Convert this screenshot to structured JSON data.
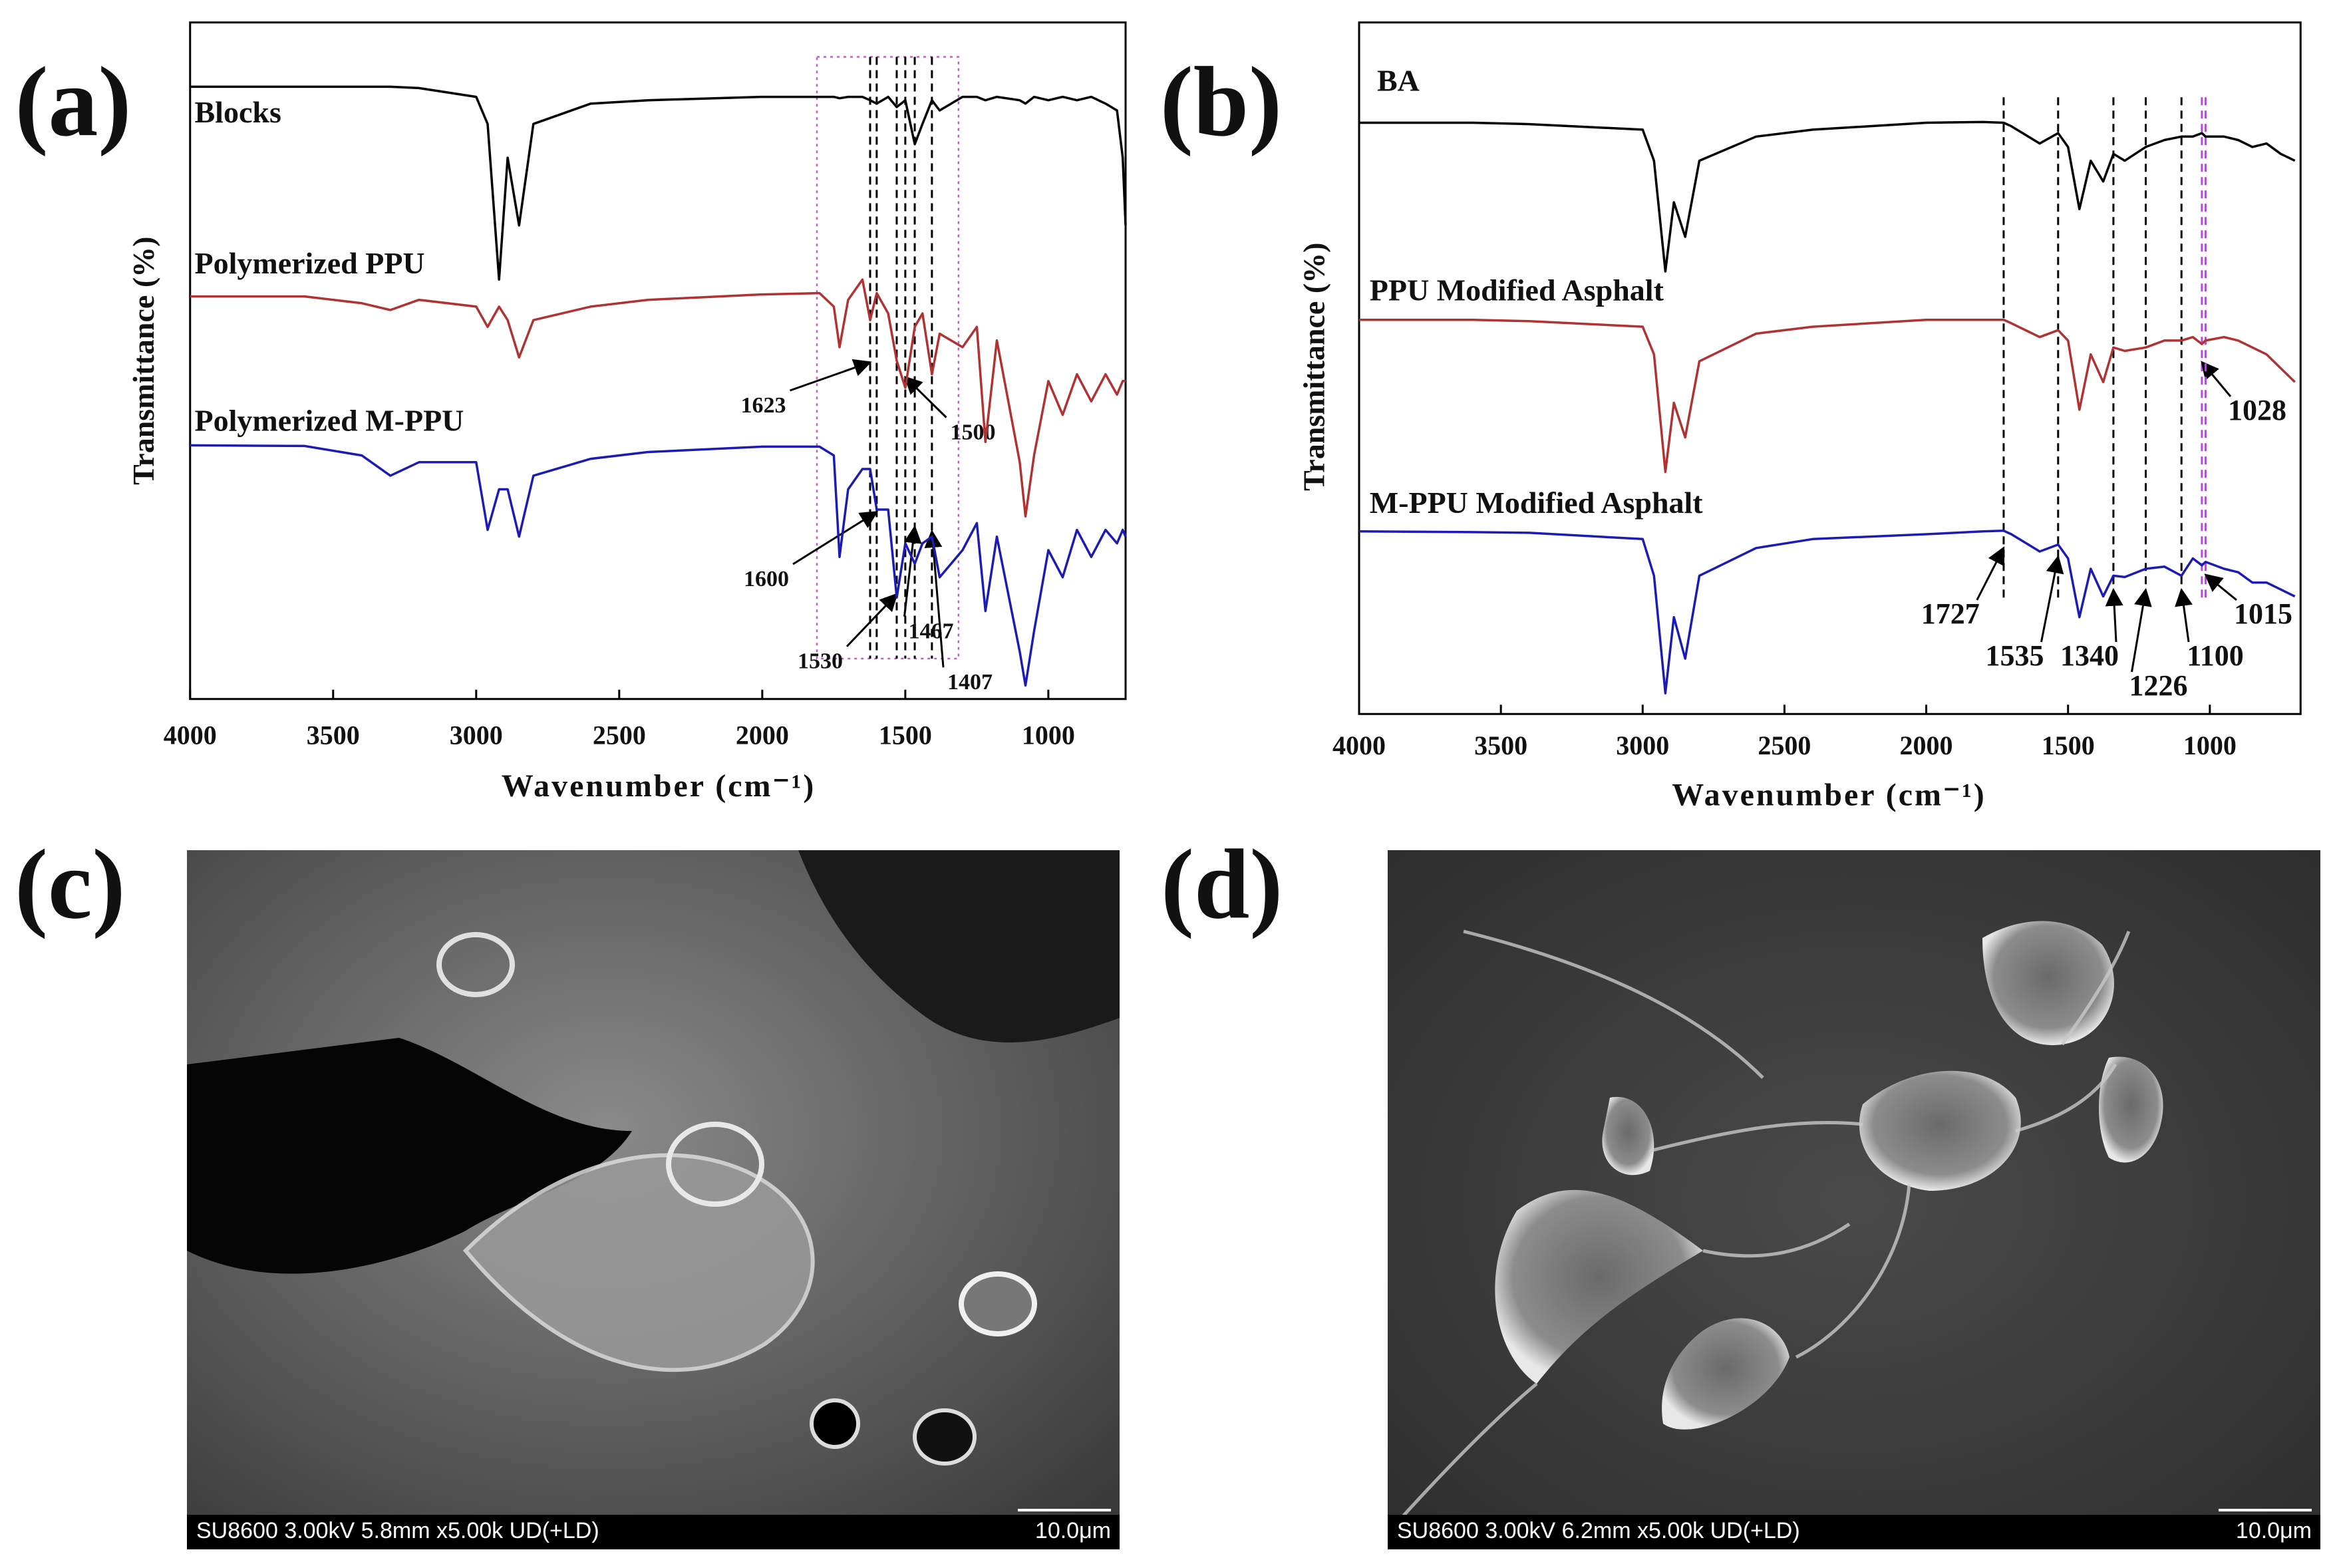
{
  "chart_data": [
    {
      "type": "line",
      "panel_label": "(a)",
      "y_label": "Transmittance (%)",
      "x_label": "Wavenumber (cm⁻¹)",
      "xlim": [
        4000,
        730
      ],
      "xticks": [
        4000,
        3500,
        3000,
        2500,
        2000,
        1500,
        1000
      ],
      "ylim": [
        0,
        100
      ],
      "x": [
        4000,
        3600,
        3400,
        3300,
        3200,
        3000,
        2960,
        2920,
        2890,
        2850,
        2800,
        2600,
        2400,
        2000,
        1800,
        1750,
        1730,
        1700,
        1650,
        1623,
        1600,
        1560,
        1530,
        1500,
        1467,
        1440,
        1407,
        1380,
        1300,
        1250,
        1220,
        1180,
        1100,
        1080,
        1050,
        1000,
        950,
        900,
        850,
        800,
        760,
        740,
        730
      ],
      "series": [
        {
          "name": "Blocks",
          "color": "#000000",
          "values": [
            90.5,
            90.5,
            90.5,
            90.5,
            90.3,
            89,
            85,
            62,
            80,
            70,
            85,
            88,
            88.5,
            89,
            89,
            89,
            88.8,
            89,
            89,
            88.5,
            88,
            89,
            87.5,
            88.5,
            82,
            85,
            88.5,
            87,
            89,
            89,
            88.5,
            89,
            88.5,
            88,
            89,
            88.5,
            89,
            88.5,
            89,
            88,
            87,
            80,
            70
          ]
        },
        {
          "name": "Polymerized PPU",
          "color": "#b03232",
          "values": [
            59.5,
            59.5,
            58.5,
            57.5,
            59,
            58,
            55,
            58,
            56,
            50.5,
            56,
            58,
            59,
            59.8,
            60,
            58,
            52,
            59,
            62,
            56,
            60,
            57,
            50,
            46,
            55,
            57,
            48,
            54,
            52,
            55,
            38,
            53,
            35,
            27,
            36,
            47,
            42,
            48,
            44,
            48,
            45,
            47,
            47
          ]
        },
        {
          "name": "Polymerized M-PPU",
          "color": "#1c1cb4",
          "values": [
            37.5,
            37.4,
            36,
            33,
            35,
            35,
            25,
            31,
            31,
            24,
            33,
            35.5,
            36.5,
            37.3,
            37.3,
            36,
            21,
            31,
            34,
            34,
            28,
            28,
            15,
            23,
            20,
            23,
            24,
            18,
            22,
            26,
            13,
            24,
            7,
            2,
            10,
            22,
            18,
            25,
            21,
            25,
            23,
            25,
            24
          ]
        }
      ],
      "peaks": [
        1623,
        1500,
        1600,
        1530,
        1467,
        1407
      ]
    },
    {
      "type": "line",
      "panel_label": "(b)",
      "y_label": "Transmittance (%)",
      "x_label": "Wavenumber (cm⁻¹)",
      "xlim": [
        4000,
        680
      ],
      "xticks": [
        4000,
        3500,
        3000,
        2500,
        2000,
        1500,
        1000
      ],
      "ylim": [
        0,
        100
      ],
      "x": [
        4000,
        3600,
        3400,
        3000,
        2960,
        2920,
        2890,
        2850,
        2800,
        2600,
        2400,
        2000,
        1800,
        1727,
        1700,
        1600,
        1535,
        1500,
        1460,
        1420,
        1376,
        1340,
        1300,
        1226,
        1160,
        1100,
        1060,
        1028,
        1015,
        950,
        900,
        850,
        800,
        750,
        700
      ],
      "series": [
        {
          "name": "BA",
          "color": "#000000",
          "values": [
            85.5,
            85.5,
            85.3,
            84.5,
            80,
            64,
            74,
            69,
            80,
            83.5,
            84.5,
            85.5,
            85.6,
            85.5,
            85,
            82.5,
            84,
            82,
            73,
            80,
            77,
            81,
            80,
            82,
            83,
            83.5,
            83.5,
            84,
            83.5,
            83.5,
            83,
            82,
            82.5,
            81,
            80
          ]
        },
        {
          "name": "PPU Modified Asphalt",
          "color": "#b03232",
          "values": [
            57,
            57,
            56.8,
            56,
            52,
            35,
            45,
            40,
            51,
            55,
            56,
            57,
            57,
            57,
            56.5,
            54.5,
            55.5,
            54,
            44,
            52,
            48,
            53,
            52.5,
            53,
            54,
            54,
            54.5,
            53.5,
            54,
            54.5,
            54,
            53,
            52,
            50,
            48
          ]
        },
        {
          "name": "M-PPU Modified Asphalt",
          "color": "#1c1cb4",
          "values": [
            26.4,
            26.3,
            26.2,
            25.3,
            20,
            3,
            14,
            8,
            20,
            24,
            25.3,
            26,
            26.4,
            26.5,
            26,
            23.5,
            24.5,
            22.5,
            14,
            21,
            17,
            20,
            19.8,
            21,
            21.3,
            20,
            22.5,
            21.5,
            22,
            21,
            20.5,
            19,
            19,
            18,
            17
          ]
        }
      ],
      "peaks": [
        1727,
        1535,
        1340,
        1226,
        1100,
        1028,
        1015
      ]
    }
  ],
  "images": [
    {
      "panel_label": "(c)",
      "caption": "SU8600 3.00kV 5.8mm x5.00k UD(+LD)",
      "scale": "10.0μm"
    },
    {
      "panel_label": "(d)",
      "caption": "SU8600 3.00kV 6.2mm x5.00k UD(+LD)",
      "scale": "10.0μm"
    }
  ]
}
